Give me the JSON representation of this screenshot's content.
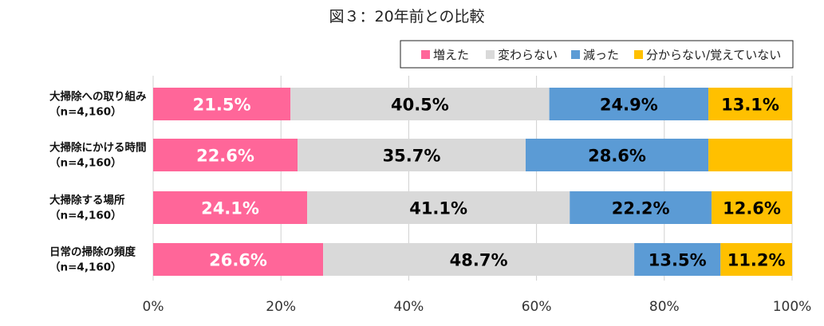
{
  "chart_data": {
    "type": "bar",
    "orientation": "horizontal-stacked-100",
    "title": "図３：20年前との比較",
    "categories": [
      [
        "大掃除への取り組み",
        "（n=4,160）"
      ],
      [
        "大掃除にかける時間",
        "（n=4,160）"
      ],
      [
        "大掃除する場所",
        "（n=4,160）"
      ],
      [
        "日常の掃除の頻度",
        "（n=4,160）"
      ]
    ],
    "series": [
      {
        "name": "増えた",
        "color": "#ff6699",
        "label_color": "#ffffff",
        "values": [
          21.5,
          22.6,
          24.1,
          26.6
        ],
        "labels": [
          "21.5%",
          "22.6%",
          "24.1%",
          "26.6%"
        ]
      },
      {
        "name": "変わらない",
        "color": "#d9d9d9",
        "label_color": "#000000",
        "values": [
          40.5,
          35.7,
          41.1,
          48.7
        ],
        "labels": [
          "40.5%",
          "35.7%",
          "41.1%",
          "48.7%"
        ]
      },
      {
        "name": "減った",
        "color": "#5b9bd5",
        "label_color": "#000000",
        "values": [
          24.9,
          28.6,
          22.2,
          13.5
        ],
        "labels": [
          "24.9%",
          "28.6%",
          "22.2%",
          "13.5%"
        ]
      },
      {
        "name": "分からない/覚えていない",
        "color": "#ffc000",
        "label_color": "#000000",
        "values": [
          13.1,
          13.1,
          12.6,
          11.2
        ],
        "labels": [
          "13.1%",
          "",
          "12.6%",
          "11.2%"
        ]
      }
    ],
    "xlim": [
      0,
      100
    ],
    "xticks": [
      "0%",
      "20%",
      "40%",
      "60%",
      "80%",
      "100%"
    ],
    "grid": true,
    "legend_position": "top-right"
  }
}
